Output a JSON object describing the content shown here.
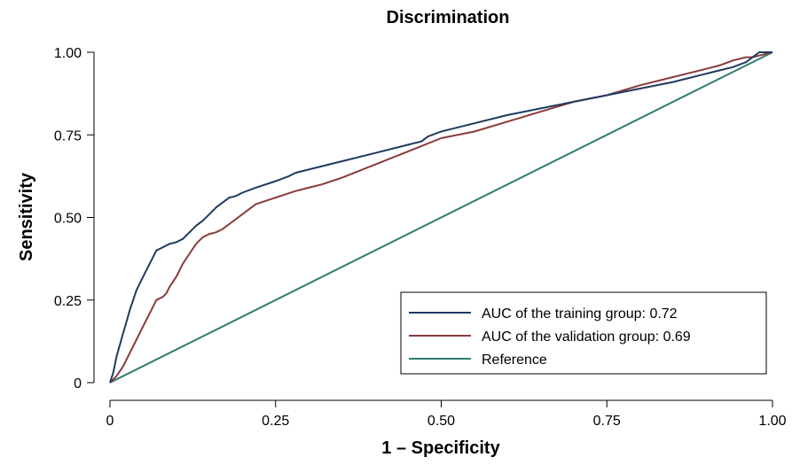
{
  "chart_data": {
    "type": "line",
    "title": "Discrimination",
    "xlabel": "1 – Specificity",
    "ylabel": "Sensitivity",
    "xlim": [
      0,
      1
    ],
    "ylim": [
      0,
      1
    ],
    "x_ticks": [
      0,
      0.25,
      0.5,
      0.75,
      1.0
    ],
    "x_tick_labels": [
      "0",
      "0.25",
      "0.50",
      "0.75",
      "1.00"
    ],
    "y_ticks": [
      0,
      0.25,
      0.5,
      0.75,
      1.0
    ],
    "y_tick_labels": [
      "0",
      "0.25",
      "0.50",
      "0.75",
      "1.00"
    ],
    "grid": false,
    "legend_position": "bottom-right",
    "series": [
      {
        "name": "AUC of the training group: 0.72",
        "color": "#1f3a5f",
        "x": [
          0,
          0.005,
          0.01,
          0.02,
          0.03,
          0.04,
          0.05,
          0.06,
          0.07,
          0.08,
          0.09,
          0.1,
          0.11,
          0.12,
          0.13,
          0.14,
          0.15,
          0.16,
          0.17,
          0.18,
          0.19,
          0.2,
          0.22,
          0.25,
          0.27,
          0.28,
          0.3,
          0.35,
          0.4,
          0.45,
          0.47,
          0.48,
          0.5,
          0.55,
          0.6,
          0.65,
          0.7,
          0.75,
          0.8,
          0.85,
          0.9,
          0.92,
          0.94,
          0.96,
          0.97,
          0.98,
          1.0
        ],
        "y": [
          0,
          0.03,
          0.08,
          0.15,
          0.22,
          0.28,
          0.32,
          0.36,
          0.4,
          0.41,
          0.42,
          0.425,
          0.435,
          0.455,
          0.475,
          0.49,
          0.51,
          0.53,
          0.545,
          0.56,
          0.565,
          0.575,
          0.59,
          0.61,
          0.625,
          0.635,
          0.645,
          0.67,
          0.695,
          0.72,
          0.73,
          0.745,
          0.76,
          0.785,
          0.81,
          0.83,
          0.85,
          0.87,
          0.89,
          0.91,
          0.935,
          0.945,
          0.955,
          0.97,
          0.985,
          1.0,
          1.0
        ]
      },
      {
        "name": "AUC of the validation group: 0.69",
        "color": "#8a3a3a",
        "x": [
          0,
          0.01,
          0.02,
          0.03,
          0.04,
          0.05,
          0.06,
          0.07,
          0.08,
          0.085,
          0.09,
          0.1,
          0.11,
          0.12,
          0.13,
          0.135,
          0.14,
          0.15,
          0.16,
          0.17,
          0.18,
          0.2,
          0.22,
          0.25,
          0.28,
          0.3,
          0.32,
          0.35,
          0.4,
          0.45,
          0.5,
          0.55,
          0.6,
          0.65,
          0.7,
          0.75,
          0.8,
          0.85,
          0.9,
          0.92,
          0.94,
          0.96,
          0.97,
          0.98,
          1.0
        ],
        "y": [
          0,
          0.02,
          0.05,
          0.09,
          0.13,
          0.17,
          0.21,
          0.25,
          0.26,
          0.27,
          0.29,
          0.32,
          0.36,
          0.39,
          0.42,
          0.43,
          0.44,
          0.45,
          0.455,
          0.465,
          0.48,
          0.51,
          0.54,
          0.56,
          0.58,
          0.59,
          0.6,
          0.62,
          0.66,
          0.7,
          0.74,
          0.76,
          0.79,
          0.82,
          0.85,
          0.87,
          0.9,
          0.925,
          0.95,
          0.96,
          0.975,
          0.985,
          0.985,
          0.99,
          1.0
        ]
      },
      {
        "name": "Reference",
        "color": "#2e7d6e",
        "x": [
          0,
          1
        ],
        "y": [
          0,
          1
        ]
      }
    ]
  }
}
